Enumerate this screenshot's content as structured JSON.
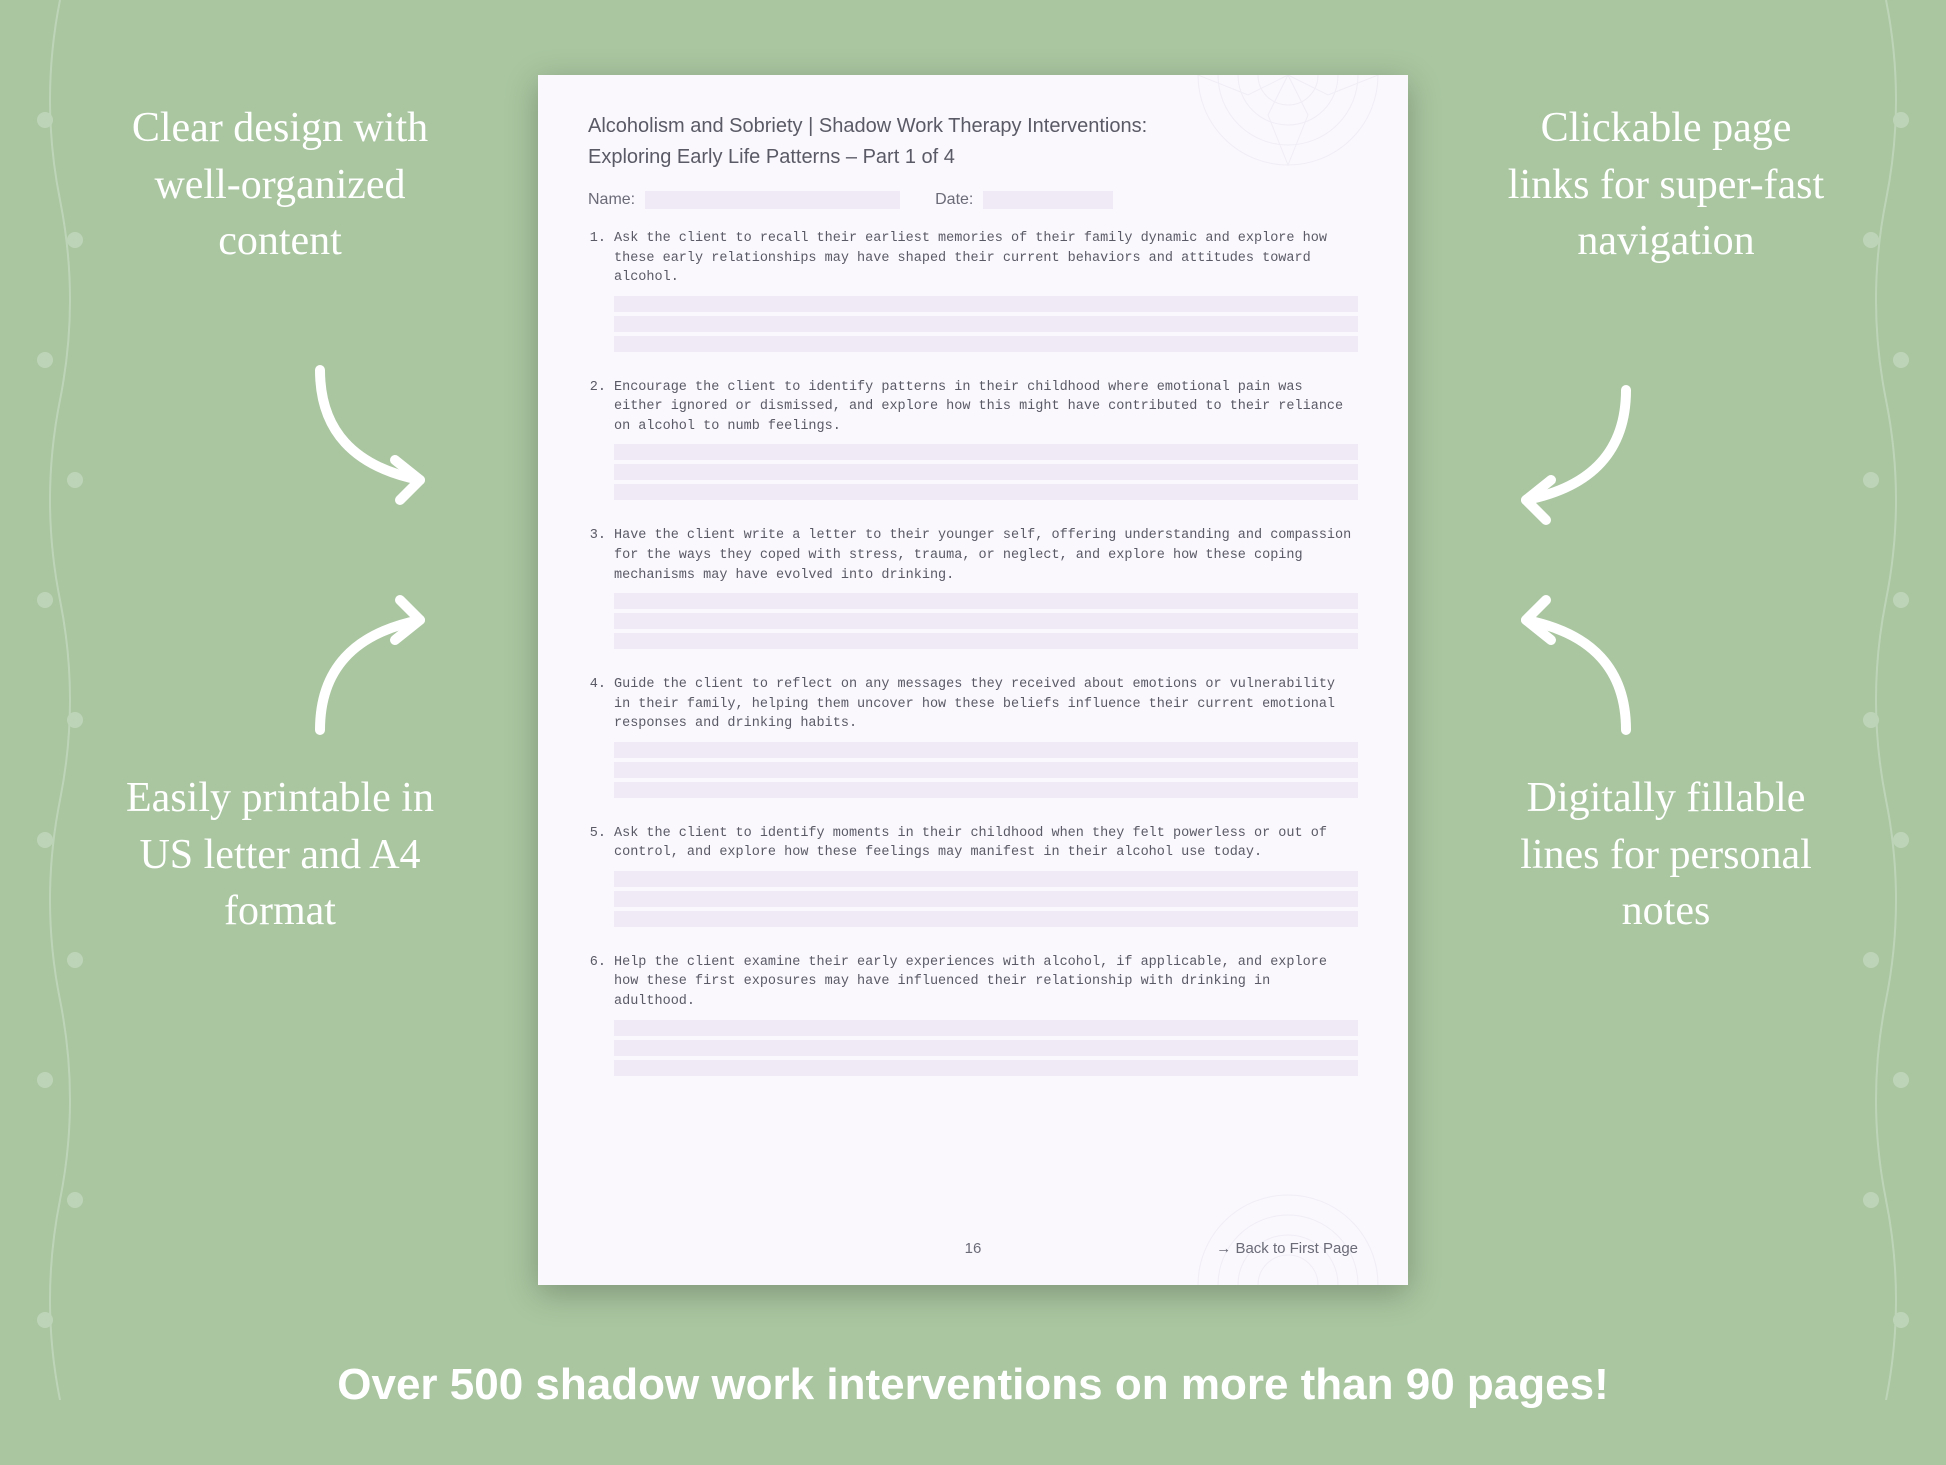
{
  "background_color": "#a9c6a0",
  "callouts": {
    "top_left": "Clear design with well-organized content",
    "top_right": "Clickable page links for super-fast navigation",
    "bottom_left": "Easily printable in US letter and A4 format",
    "bottom_right": "Digitally fillable lines for personal notes"
  },
  "callout_style": {
    "color": "#ffffff",
    "font_size_pt": 32,
    "font_weight": 300
  },
  "arrow_color": "#ffffff",
  "page": {
    "background_color": "#faf8fd",
    "fill_line_color": "#efeaf6",
    "text_color": "#5a5a66",
    "title_line1": "Alcoholism and Sobriety | Shadow Work Therapy Interventions:",
    "title_line2": "Exploring Early Life Patterns  – Part 1 of 4",
    "name_label": "Name:",
    "date_label": "Date:",
    "items": [
      "Ask the client to recall their earliest memories of their family dynamic and explore how these early relationships may have shaped their current behaviors and attitudes toward alcohol.",
      "Encourage the client to identify patterns in their childhood where emotional pain was either ignored or dismissed, and explore how this might have contributed to their reliance on alcohol to numb feelings.",
      "Have the client write a letter to their younger self, offering understanding and compassion for the ways they coped with stress, trauma, or neglect, and explore how these coping mechanisms may have evolved into drinking.",
      "Guide the client to reflect on any messages they received about emotions or vulnerability in their family, helping them uncover how these beliefs influence their current emotional responses and drinking habits.",
      "Ask the client to identify moments in their childhood when they felt powerless or out of control, and explore how these feelings may manifest in their alcohol use today.",
      "Help the client examine their early experiences with alcohol, if applicable, and explore how these first exposures may have influenced their relationship with drinking in adulthood."
    ],
    "lines_per_item": 3,
    "page_number": "16",
    "back_link_label": "→ Back to First Page"
  },
  "bottom_banner": "Over 500 shadow work interventions on more than 90 pages!",
  "bottom_banner_style": {
    "color": "#ffffff",
    "font_size_pt": 33,
    "font_weight": 600
  }
}
